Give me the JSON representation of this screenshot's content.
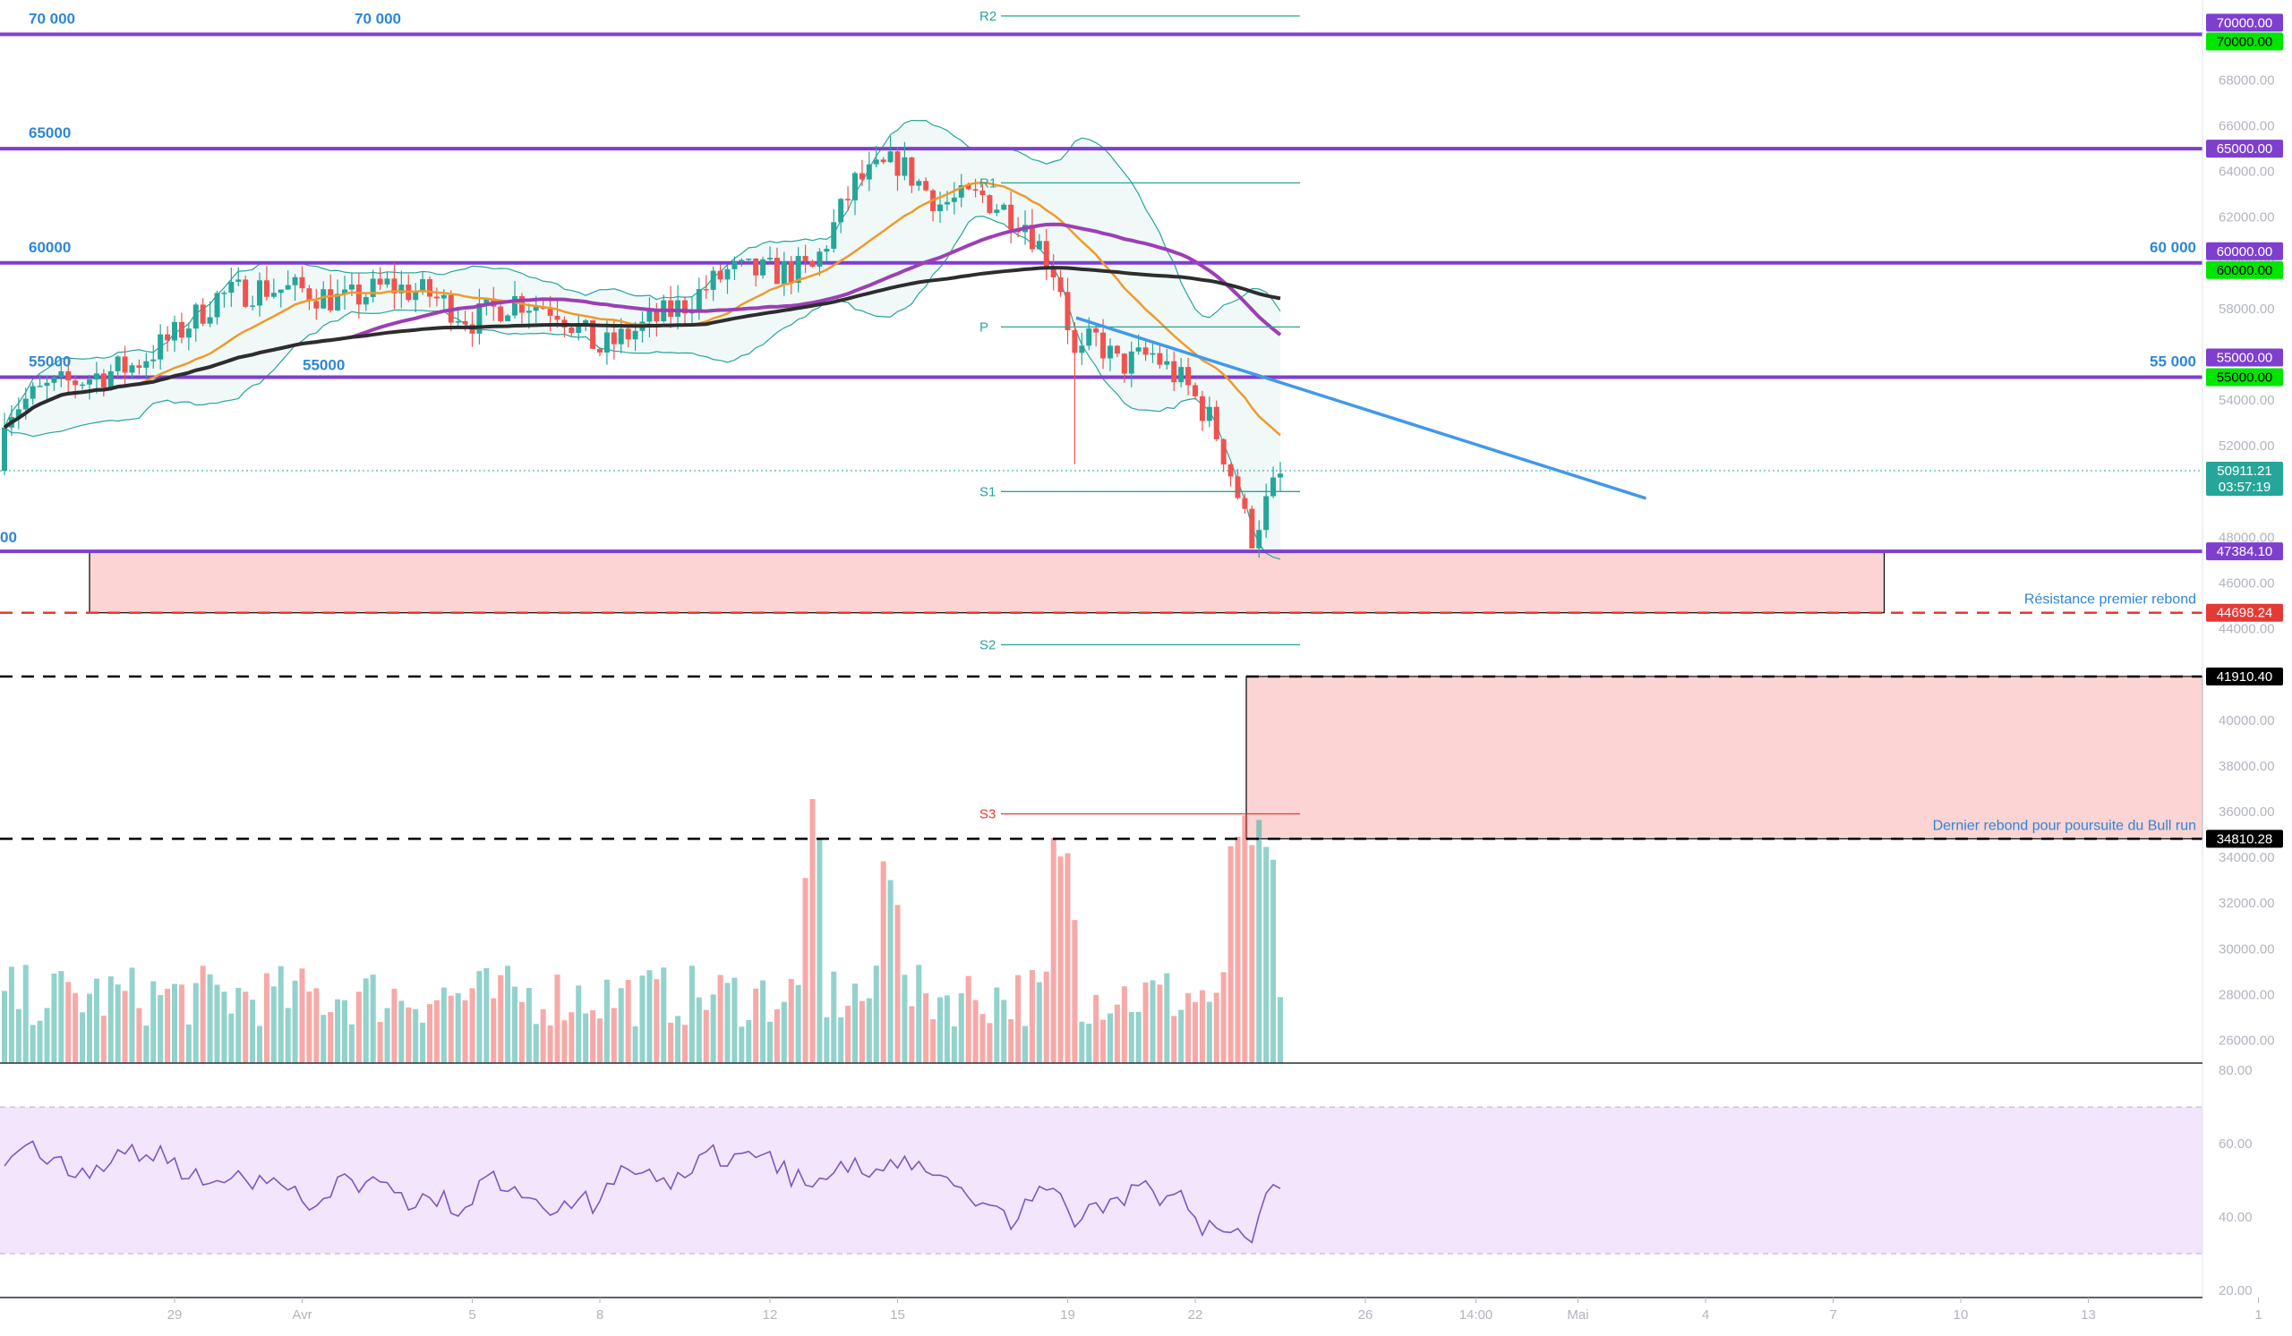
{
  "chart_data": {
    "type": "candlestick",
    "symbol_pair": "BTC",
    "price_axis": {
      "ylim": [
        25000,
        71500
      ],
      "ticks": [
        26000,
        28000,
        30000,
        32000,
        34000,
        36000,
        38000,
        40000,
        42000,
        44000,
        46000,
        48000,
        50000,
        52000,
        54000,
        56000,
        58000,
        60000,
        62000,
        64000,
        66000,
        68000
      ],
      "tick_labels": [
        "26000.00",
        "28000.00",
        "30000.00",
        "32000.00",
        "34000.00",
        "36000.00",
        "38000.00",
        "40000.00",
        "42000.00",
        "44000.00",
        "46000.00",
        "48000.00",
        "50000.00",
        "52000.00",
        "54000.00",
        "56000.00",
        "58000.00",
        "60000.00",
        "62000.00",
        "64000.00",
        "66000.00",
        "68000.00"
      ]
    },
    "rsi_axis": {
      "ylim": [
        19,
        82
      ],
      "ticks": [
        20,
        40,
        60,
        80
      ],
      "tick_labels": [
        "20.00",
        "40.00",
        "60.00",
        "80.00"
      ],
      "band": [
        30,
        70
      ]
    },
    "time_axis": {
      "ticks": [
        {
          "label": "29",
          "day": 2
        },
        {
          "label": "Avr",
          "day": 5
        },
        {
          "label": "5",
          "day": 9
        },
        {
          "label": "8",
          "day": 12
        },
        {
          "label": "12",
          "day": 16
        },
        {
          "label": "15",
          "day": 19
        },
        {
          "label": "19",
          "day": 23
        },
        {
          "label": "22",
          "day": 26
        },
        {
          "label": "26",
          "day": 30
        },
        {
          "label": "14:00",
          "day": 32.6
        },
        {
          "label": "Mai",
          "day": 35
        },
        {
          "label": "4",
          "day": 38
        },
        {
          "label": "7",
          "day": 41
        },
        {
          "label": "10",
          "day": 44
        },
        {
          "label": "13",
          "day": 47
        },
        {
          "label": "1",
          "day": 51
        }
      ]
    },
    "horizontal_levels": [
      {
        "value": 70000,
        "label_left": "70 000",
        "label_left2": "70 000",
        "label_right": "",
        "color": "#7e3fcf"
      },
      {
        "value": 65000,
        "label_left": "65000",
        "label_right": "",
        "color": "#7e3fcf"
      },
      {
        "value": 60000,
        "label_left": "60000",
        "label_right": "60 000",
        "color": "#7e3fcf"
      },
      {
        "value": 55000,
        "label_left": "55000",
        "label_right": "55 000",
        "color": "#7e3fcf"
      },
      {
        "value": 47384.1,
        "label_left": "00",
        "label_right": "",
        "color": "#7e3fcf"
      }
    ],
    "pivots": [
      {
        "label": "R2",
        "value": 70800,
        "color": "#26a69a"
      },
      {
        "label": "R1",
        "value": 63500,
        "color": "#26a69a"
      },
      {
        "label": "P",
        "value": 57200,
        "color": "#26a69a"
      },
      {
        "label": "S1",
        "value": 50000,
        "color": "#26a69a"
      },
      {
        "label": "S2",
        "value": 43300,
        "color": "#26a69a"
      },
      {
        "label": "S3",
        "value": 35900,
        "color": "#e53935"
      }
    ],
    "zones": [
      {
        "name": "resistance-zone",
        "from": 44698.24,
        "to": 47384.1,
        "start_day": 0,
        "end_day": 42.2,
        "annotation": "Résistance premier rebond"
      },
      {
        "name": "support-zone",
        "from": 34810.28,
        "to": 41910.4,
        "start_day": 27.2,
        "end_day": 51,
        "annotation": "Dernier rebond pour poursuite du Bull run"
      }
    ],
    "dashed_levels": [
      {
        "value": 44698.24,
        "color": "#e53935"
      },
      {
        "value": 41910.4,
        "color": "#000000"
      },
      {
        "value": 34810.28,
        "color": "#000000"
      }
    ],
    "trendline": {
      "from": {
        "day": 23.2,
        "value": 57600
      },
      "to": {
        "day": 36.6,
        "value": 49700
      },
      "color": "#4199e8"
    },
    "price_tags": [
      {
        "value": 70000,
        "text": "70000.00",
        "bg": "#7e3fcf",
        "fg": "#ffffff",
        "offset": -13
      },
      {
        "value": 70000,
        "text": "70000.00",
        "bg": "#00e600",
        "fg": "#000000",
        "offset": 8
      },
      {
        "value": 65000,
        "text": "65000.00",
        "bg": "#7e3fcf",
        "fg": "#ffffff",
        "offset": 0
      },
      {
        "value": 60000,
        "text": "60000.00",
        "bg": "#7e3fcf",
        "fg": "#ffffff",
        "offset": -13
      },
      {
        "value": 60000,
        "text": "60000.00",
        "bg": "#00e600",
        "fg": "#000000",
        "offset": 8
      },
      {
        "value": 55000,
        "text": "55000.00",
        "bg": "#7e3fcf",
        "fg": "#ffffff",
        "offset": -22
      },
      {
        "value": 55000,
        "text": "55000.00",
        "bg": "#00e600",
        "fg": "#000000",
        "offset": 0
      },
      {
        "value": 50911.21,
        "text": "50911.21",
        "bg": "#26a69a",
        "fg": "#ffffff",
        "offset": 0,
        "sub": "03:57:19"
      },
      {
        "value": 47384.1,
        "text": "47384.10",
        "bg": "#7e3fcf",
        "fg": "#ffffff",
        "offset": 0
      },
      {
        "value": 44698.24,
        "text": "44698.24",
        "bg": "#e53935",
        "fg": "#ffffff",
        "offset": 0
      },
      {
        "value": 41910.4,
        "text": "41910.40",
        "bg": "#000000",
        "fg": "#ffffff",
        "offset": 0
      },
      {
        "value": 34810.28,
        "text": "34810.28",
        "bg": "#000000",
        "fg": "#ffffff",
        "offset": 0
      }
    ],
    "colors": {
      "up": "#26a69a",
      "down": "#ef5350",
      "ma_fast": "#f19a2a",
      "ma_mid": "#9c3fb5",
      "ma_slow": "#2d2d2d",
      "bb": "#26a69a",
      "rsi": "#7e57c2"
    }
  }
}
